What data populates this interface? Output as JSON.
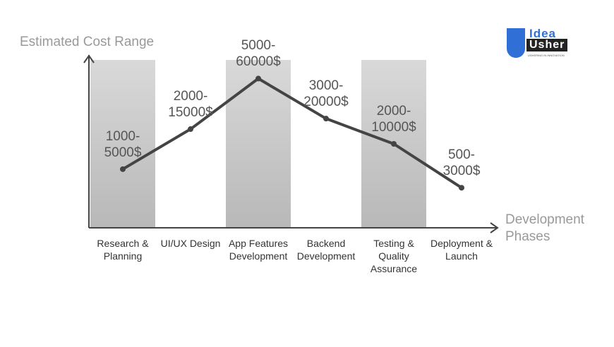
{
  "chart_data": {
    "type": "line",
    "y_label": "Estimated Cost Range",
    "x_label": "Development Phases",
    "categories": [
      "Research & Planning",
      "UI/UX Design",
      "App Features Development",
      "Backend Development",
      "Testing & Quality Assurance",
      "Deployment & Launch"
    ],
    "values": [
      5000,
      15000,
      60000,
      20000,
      10000,
      3000
    ],
    "value_labels": [
      "1000-5000$",
      "2000-15000$",
      "5000-60000$",
      "3000-20000$",
      "2000-10000$",
      "500-3000$"
    ],
    "ylim": [
      1000,
      100000
    ],
    "log_scale": true,
    "color": "#444444",
    "logo": {
      "top": "Idea",
      "bottom": "Usher",
      "tagline": "USHERING IN INNOVATION"
    }
  }
}
